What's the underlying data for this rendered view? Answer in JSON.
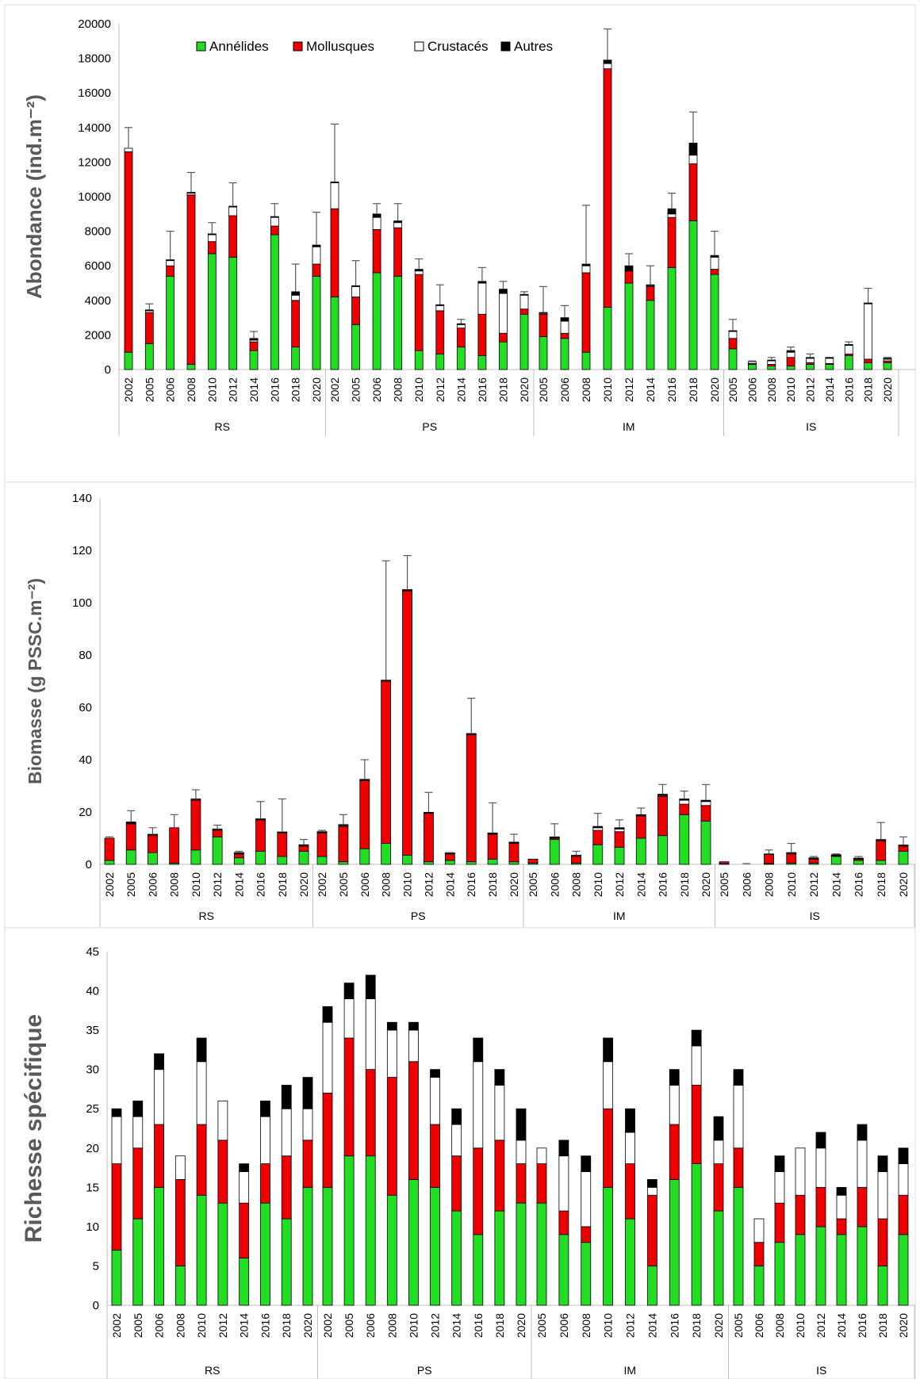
{
  "legend": {
    "items": [
      {
        "name": "Annélides",
        "color": "#22dd22"
      },
      {
        "name": "Mollusques",
        "color": "#ee0000"
      },
      {
        "name": "Crustacés",
        "color": "#ffffff"
      },
      {
        "name": "Autres",
        "color": "#000000"
      }
    ]
  },
  "chart_data": [
    {
      "type": "bar",
      "stacked": true,
      "ylabel": "Abondance (ind.m⁻²)",
      "ylim": [
        0,
        20000
      ],
      "yticks": [
        0,
        2000,
        4000,
        6000,
        8000,
        10000,
        12000,
        14000,
        16000,
        18000,
        20000
      ],
      "legend_position": "top",
      "groups": [
        {
          "site": "RS",
          "years": [
            "2002",
            "2005",
            "2006",
            "2008",
            "2010",
            "2012",
            "2014",
            "2016",
            "2018",
            "2020"
          ],
          "annelides": [
            1000,
            1500,
            5400,
            300,
            6700,
            6500,
            1100,
            7800,
            1300,
            5400
          ],
          "mollusques": [
            11600,
            1800,
            600,
            9800,
            700,
            2400,
            500,
            500,
            2700,
            700
          ],
          "crustaces": [
            200,
            100,
            300,
            100,
            400,
            500,
            100,
            500,
            300,
            1000
          ],
          "autres": [
            0,
            50,
            50,
            50,
            50,
            50,
            100,
            50,
            200,
            100
          ],
          "error_top": [
            14000,
            3800,
            8000,
            11400,
            8500,
            10800,
            2200,
            9600,
            6100,
            9100
          ]
        },
        {
          "site": "PS",
          "years": [
            "2002",
            "2005",
            "2006",
            "2008",
            "2010",
            "2012",
            "2014",
            "2016",
            "2018",
            "2020"
          ],
          "annelides": [
            4200,
            2600,
            5600,
            5400,
            1100,
            900,
            1300,
            800,
            1600,
            3200
          ],
          "mollusques": [
            5100,
            1600,
            2500,
            2800,
            4400,
            2500,
            1100,
            2400,
            500,
            300
          ],
          "crustaces": [
            1500,
            600,
            700,
            300,
            200,
            300,
            200,
            1800,
            2300,
            800
          ],
          "autres": [
            50,
            50,
            200,
            100,
            100,
            50,
            50,
            100,
            250,
            50
          ],
          "error_top": [
            14200,
            6300,
            9600,
            9600,
            6400,
            4900,
            2900,
            5900,
            5100,
            4500
          ]
        },
        {
          "site": "IM",
          "years": [
            "2005",
            "2006",
            "2008",
            "2010",
            "2012",
            "2014",
            "2016",
            "2018",
            "2020"
          ],
          "annelides": [
            1900,
            1800,
            1000,
            3600,
            5000,
            4000,
            5900,
            8600,
            5500
          ],
          "mollusques": [
            1300,
            300,
            4600,
            13800,
            700,
            800,
            2900,
            3300,
            300
          ],
          "crustaces": [
            50,
            700,
            400,
            300,
            0,
            50,
            200,
            500,
            700
          ],
          "autres": [
            50,
            200,
            100,
            200,
            300,
            50,
            300,
            700,
            100
          ],
          "error_top": [
            4800,
            3700,
            9500,
            19700,
            6700,
            6000,
            10200,
            14900,
            8000
          ]
        },
        {
          "site": "IS",
          "years": [
            "2005",
            "2006",
            "2008",
            "2010",
            "2012",
            "2014",
            "2016",
            "2018",
            "2020"
          ],
          "annelides": [
            1200,
            300,
            200,
            200,
            300,
            300,
            800,
            400,
            400
          ],
          "mollusques": [
            600,
            50,
            100,
            500,
            100,
            50,
            100,
            200,
            100
          ],
          "crustaces": [
            400,
            100,
            200,
            300,
            250,
            300,
            500,
            3200,
            100
          ],
          "autres": [
            50,
            0,
            50,
            100,
            50,
            50,
            50,
            50,
            50
          ],
          "error_top": [
            2900,
            500,
            700,
            1300,
            900,
            700,
            1600,
            4700,
            700
          ]
        }
      ]
    },
    {
      "type": "bar",
      "stacked": true,
      "ylabel": "Biomasse (g PSSC.m⁻²)",
      "ylim": [
        0,
        140
      ],
      "yticks": [
        0,
        20,
        40,
        60,
        80,
        100,
        120,
        140
      ],
      "groups": [
        {
          "site": "RS",
          "years": [
            "2002",
            "2005",
            "2006",
            "2008",
            "2010",
            "2012",
            "2014",
            "2016",
            "2018",
            "2020"
          ],
          "annelides": [
            1.5,
            5.5,
            4.5,
            0.5,
            5.5,
            10.5,
            2.5,
            5.0,
            3.0,
            5.0
          ],
          "mollusques": [
            8.5,
            10.0,
            6.5,
            13.5,
            19.0,
            2.5,
            1.5,
            12.0,
            9.0,
            2.0
          ],
          "crustaces": [
            0,
            0.2,
            0.3,
            0,
            0.3,
            0.3,
            0.2,
            0.2,
            0.2,
            0.3
          ],
          "autres": [
            0,
            0.5,
            0.2,
            0,
            0.2,
            0.2,
            0.3,
            0.2,
            0.2,
            0.2
          ],
          "error_top": [
            10.5,
            20.5,
            14.0,
            19.0,
            28.5,
            15.0,
            5.0,
            24.0,
            25.0,
            9.5
          ]
        },
        {
          "site": "PS",
          "years": [
            "2002",
            "2005",
            "2006",
            "2008",
            "2010",
            "2012",
            "2014",
            "2016",
            "2018",
            "2020"
          ],
          "annelides": [
            3.0,
            1.0,
            6.0,
            8.0,
            3.5,
            1.0,
            1.5,
            1.0,
            2.0,
            1.0
          ],
          "mollusques": [
            9.0,
            13.5,
            26.0,
            62.0,
            101.0,
            18.5,
            2.5,
            48.5,
            9.5,
            7.0
          ],
          "crustaces": [
            0.2,
            0.3,
            0.2,
            0.2,
            0.2,
            0.2,
            0.2,
            0.2,
            0.2,
            0.2
          ],
          "autres": [
            0.3,
            0.4,
            0.3,
            0.2,
            0.3,
            0.2,
            0.2,
            0.3,
            0.3,
            0.3
          ],
          "error_top": [
            13.0,
            19.0,
            40.0,
            116.0,
            118.0,
            27.5,
            4.5,
            63.5,
            23.5,
            11.5
          ]
        },
        {
          "site": "IM",
          "years": [
            "2005",
            "2006",
            "2008",
            "2010",
            "2012",
            "2014",
            "2016",
            "2018",
            "2020"
          ],
          "annelides": [
            0.5,
            9.5,
            0.5,
            7.5,
            6.5,
            10.0,
            11.0,
            19.0,
            16.5
          ],
          "mollusques": [
            1.5,
            0.5,
            2.5,
            5.5,
            6.0,
            8.5,
            15.0,
            4.0,
            6.0
          ],
          "crustaces": [
            0,
            0.2,
            0.3,
            1.0,
            1.0,
            0.3,
            0.3,
            1.5,
            1.5
          ],
          "autres": [
            0,
            0.3,
            0.2,
            0.5,
            0.5,
            0.2,
            0.5,
            0.5,
            0.5
          ],
          "error_top": [
            2.0,
            15.5,
            5.0,
            19.5,
            17.0,
            21.5,
            30.5,
            28.0,
            30.5
          ]
        },
        {
          "site": "IS",
          "years": [
            "2005",
            "2006",
            "2008",
            "2010",
            "2012",
            "2014",
            "2016",
            "2018",
            "2020"
          ],
          "annelides": [
            0.3,
            0,
            0.3,
            0.5,
            0.5,
            3.0,
            1.5,
            1.5,
            5.0
          ],
          "mollusques": [
            0.7,
            0,
            3.5,
            3.5,
            1.5,
            0.3,
            0.5,
            7.5,
            2.0
          ],
          "crustaces": [
            0,
            0,
            0.2,
            0.3,
            0.3,
            0.2,
            0.2,
            0.3,
            0.2
          ],
          "autres": [
            0,
            0,
            0,
            0.2,
            0.2,
            0.2,
            0.2,
            0.2,
            0.2
          ],
          "error_top": [
            1.0,
            0.3,
            5.5,
            8.0,
            3.0,
            4.0,
            3.0,
            16.0,
            10.5
          ]
        }
      ]
    },
    {
      "type": "bar",
      "stacked": true,
      "ylabel": "Richesse spécifique",
      "ylim": [
        0,
        45
      ],
      "yticks": [
        0,
        5,
        10,
        15,
        20,
        25,
        30,
        35,
        40,
        45
      ],
      "groups": [
        {
          "site": "RS",
          "years": [
            "2002",
            "2005",
            "2006",
            "2008",
            "2010",
            "2012",
            "2014",
            "2016",
            "2018",
            "2020"
          ],
          "annelides": [
            7,
            11,
            15,
            5,
            14,
            13,
            6,
            13,
            11,
            15
          ],
          "mollusques": [
            11,
            9,
            8,
            11,
            9,
            8,
            7,
            5,
            8,
            6
          ],
          "crustaces": [
            6,
            4,
            7,
            3,
            8,
            5,
            4,
            6,
            6,
            4
          ],
          "autres": [
            1,
            2,
            2,
            0,
            3,
            0,
            1,
            2,
            3,
            4
          ]
        },
        {
          "site": "PS",
          "years": [
            "2002",
            "2005",
            "2006",
            "2008",
            "2010",
            "2012",
            "2014",
            "2016",
            "2018",
            "2020"
          ],
          "annelides": [
            15,
            19,
            19,
            14,
            16,
            15,
            12,
            9,
            12,
            13
          ],
          "mollusques": [
            12,
            15,
            11,
            15,
            15,
            8,
            7,
            11,
            9,
            5
          ],
          "crustaces": [
            9,
            5,
            9,
            6,
            4,
            6,
            4,
            11,
            7,
            3
          ],
          "autres": [
            2,
            2,
            3,
            1,
            1,
            1,
            2,
            3,
            2,
            4
          ]
        },
        {
          "site": "IM",
          "years": [
            "2005",
            "2006",
            "2008",
            "2010",
            "2012",
            "2014",
            "2016",
            "2018",
            "2020"
          ],
          "annelides": [
            13,
            9,
            8,
            15,
            11,
            5,
            16,
            18,
            12
          ],
          "mollusques": [
            5,
            3,
            2,
            10,
            7,
            9,
            7,
            10,
            6
          ],
          "crustaces": [
            2,
            7,
            7,
            6,
            4,
            1,
            5,
            5,
            3
          ],
          "autres": [
            0,
            2,
            2,
            3,
            3,
            1,
            2,
            2,
            3
          ]
        },
        {
          "site": "IS",
          "years": [
            "2005",
            "2006",
            "2008",
            "2010",
            "2012",
            "2014",
            "2016",
            "2018",
            "2020"
          ],
          "annelides": [
            15,
            5,
            8,
            9,
            10,
            9,
            10,
            5,
            9
          ],
          "mollusques": [
            5,
            3,
            5,
            5,
            5,
            2,
            5,
            6,
            5
          ],
          "crustaces": [
            8,
            3,
            4,
            6,
            5,
            3,
            6,
            6,
            4
          ],
          "autres": [
            2,
            0,
            2,
            0,
            2,
            1,
            2,
            2,
            2
          ]
        }
      ]
    }
  ]
}
